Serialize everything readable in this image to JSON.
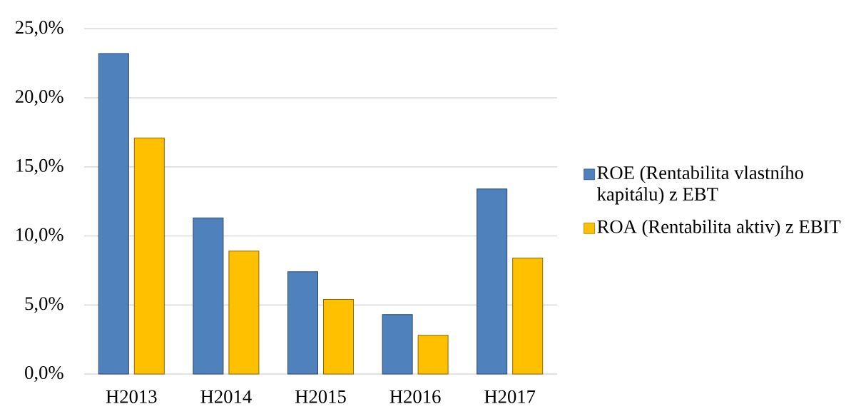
{
  "chart_data": {
    "type": "bar",
    "categories": [
      "H2013",
      "H2014",
      "H2015",
      "H2016",
      "H2017"
    ],
    "series": [
      {
        "name": "ROE (Rentabilita vlastního kapitálu) z EBT",
        "color": "#4f81bd",
        "values": [
          23.2,
          11.3,
          7.4,
          4.3,
          13.4
        ]
      },
      {
        "name": "ROA (Rentabilita aktiv) z EBIT",
        "color": "#ffc000",
        "values": [
          17.1,
          8.9,
          5.4,
          2.8,
          8.4
        ]
      }
    ],
    "ylim": [
      0,
      25
    ],
    "yticks": [
      {
        "value": 0,
        "label": "0,0%"
      },
      {
        "value": 5,
        "label": "5,0%"
      },
      {
        "value": 10,
        "label": "10,0%"
      },
      {
        "value": 15,
        "label": "15,0%"
      },
      {
        "value": 20,
        "label": "20,0%"
      },
      {
        "value": 25,
        "label": "25,0%"
      }
    ],
    "grid": "y",
    "legend": "right"
  }
}
